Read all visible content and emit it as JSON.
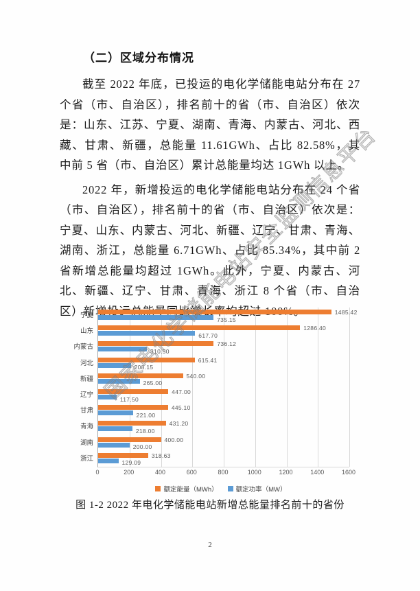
{
  "page_number": "2",
  "watermark": "国家电化学储能电站安全监测信息平台",
  "heading": "（二）区域分布情况",
  "paragraphs": [
    "截至 2022 年底，已投运的电化学储能电站分布在 27 个省（市、自治区），排名前十的省（市、自治区）依次是：山东、江苏、宁夏、湖南、青海、内蒙古、河北、西藏、甘肃、新疆，总能量 11.61GWh、占比 82.58%，其中前 5 省（市、自治区）累计总能量均达 1GWh 以上。",
    "2022 年，新增投运的电化学储能电站分布在 24 个省（市、自治区），排名前十的省（市、自治区）依次是：宁夏、山东、内蒙古、河北、新疆、辽宁、甘肃、青海、湖南、浙江，总能量 6.71GWh、占比 85.34%，其中前 2 省新增总能量均超过 1GWh。此外，宁夏、内蒙古、河北、新疆、辽宁、甘肃、青海、浙江 8 个省（市、自治区）新增投运总能量同比增长率均超过 100%。"
  ],
  "chart_data": {
    "type": "bar",
    "orientation": "horizontal",
    "title": "2022 年电化学储能电站新增总能量排名前十的省份",
    "categories": [
      "宁夏",
      "山东",
      "内蒙古",
      "河北",
      "新疆",
      "辽宁",
      "甘肃",
      "青海",
      "湖南",
      "浙江"
    ],
    "series": [
      {
        "name": "额定能量（MWh）",
        "color": "#ED7D31",
        "values": [
          1485.42,
          1286.4,
          736.12,
          615.41,
          540.0,
          447.0,
          445.1,
          431.2,
          400.0,
          318.63
        ]
      },
      {
        "name": "额定功率（MW）",
        "color": "#5B9BD5",
        "values": [
          735.15,
          617.7,
          310.5,
          208.15,
          265.0,
          117.5,
          221.0,
          218.0,
          200.0,
          129.09
        ]
      }
    ],
    "xlim": [
      0,
      1600
    ],
    "xticks": [
      0,
      200,
      400,
      600,
      800,
      1000,
      1200,
      1400,
      1600
    ],
    "grid": true,
    "legend_position": "bottom",
    "value_labels": true
  },
  "figure_caption": "图 1-2 2022 年电化学储能电站新增总能量排名前十的省份",
  "colors": {
    "energy": "#ED7D31",
    "power": "#5B9BD5",
    "gridline": "#d9d9d9",
    "chart_text": "#595959"
  }
}
